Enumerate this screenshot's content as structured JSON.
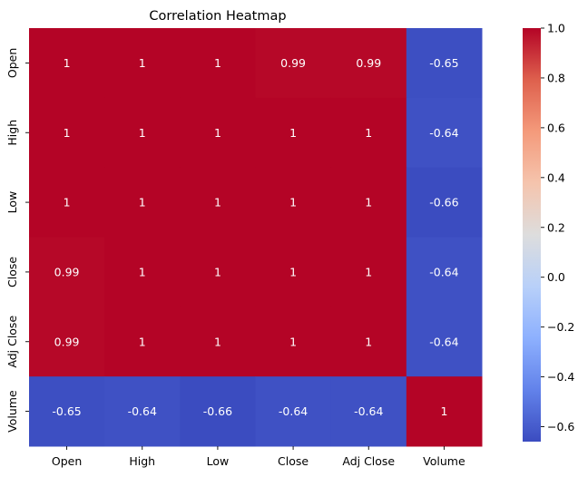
{
  "chart_data": {
    "type": "heatmap",
    "title": "Correlation Heatmap",
    "xlabel": "",
    "ylabel": "",
    "columns": [
      "Open",
      "High",
      "Low",
      "Close",
      "Adj Close",
      "Volume"
    ],
    "rows": [
      "Open",
      "High",
      "Low",
      "Close",
      "Adj Close",
      "Volume"
    ],
    "values": [
      [
        1,
        1,
        1,
        0.99,
        0.99,
        -0.65
      ],
      [
        1,
        1,
        1,
        1,
        1,
        -0.64
      ],
      [
        1,
        1,
        1,
        1,
        1,
        -0.66
      ],
      [
        0.99,
        1,
        1,
        1,
        1,
        -0.64
      ],
      [
        0.99,
        1,
        1,
        1,
        1,
        -0.64
      ],
      [
        -0.65,
        -0.64,
        -0.66,
        -0.64,
        -0.64,
        1
      ]
    ],
    "labels": [
      [
        "1",
        "1",
        "1",
        "0.99",
        "0.99",
        "-0.65"
      ],
      [
        "1",
        "1",
        "1",
        "1",
        "1",
        "-0.64"
      ],
      [
        "1",
        "1",
        "1",
        "1",
        "1",
        "-0.66"
      ],
      [
        "0.99",
        "1",
        "1",
        "1",
        "1",
        "-0.64"
      ],
      [
        "0.99",
        "1",
        "1",
        "1",
        "1",
        "-0.64"
      ],
      [
        "-0.65",
        "-0.64",
        "-0.66",
        "-0.64",
        "-0.64",
        "1"
      ]
    ],
    "colormap": "coolwarm",
    "vmin": -0.66,
    "vmax": 1.0,
    "colorbar_ticks": [
      1.0,
      0.8,
      0.6,
      0.4,
      0.2,
      0.0,
      -0.2,
      -0.4,
      -0.6
    ],
    "colorbar_tick_labels": [
      "1.0",
      "0.8",
      "0.6",
      "0.4",
      "0.2",
      "0.0",
      "−0.2",
      "−0.4",
      "−0.6"
    ]
  }
}
